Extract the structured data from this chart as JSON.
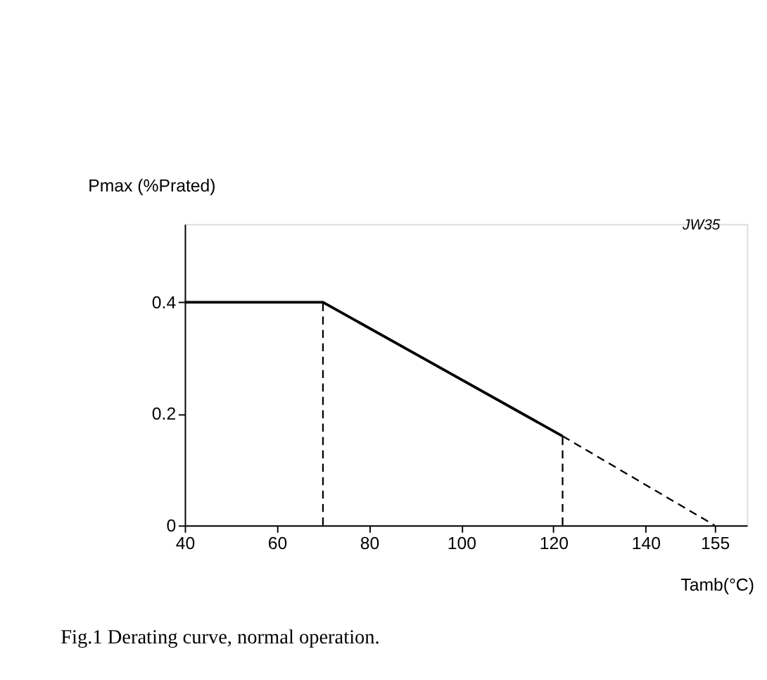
{
  "chart_data": {
    "type": "line",
    "xlabel": "Tamb(°C)",
    "ylabel": "Pmax (%Prated)",
    "xlim": [
      40,
      162
    ],
    "ylim": [
      0,
      0.54
    ],
    "xticks": [
      40,
      60,
      80,
      100,
      120,
      140,
      155
    ],
    "yticks": [
      0,
      0.2,
      0.4
    ],
    "grid": false,
    "marker": "none",
    "series": [
      {
        "color": "#000000",
        "line_style": "solid",
        "x": [
          40,
          70,
          122
        ],
        "values": [
          0.4,
          0.4,
          0.16
        ]
      },
      {
        "color": "#000000",
        "line_style": "dashed",
        "x": [
          122,
          155
        ],
        "values": [
          0.16,
          0
        ]
      },
      {
        "color": "#000000",
        "line_style": "dashed",
        "x": [
          70,
          70
        ],
        "values": [
          0,
          0.4
        ]
      },
      {
        "color": "#000000",
        "line_style": "dashed",
        "x": [
          122,
          122
        ],
        "values": [
          0,
          0.16
        ]
      }
    ],
    "annotations": [
      "JW35",
      "Fig.1  Derating curve, normal operation."
    ]
  }
}
